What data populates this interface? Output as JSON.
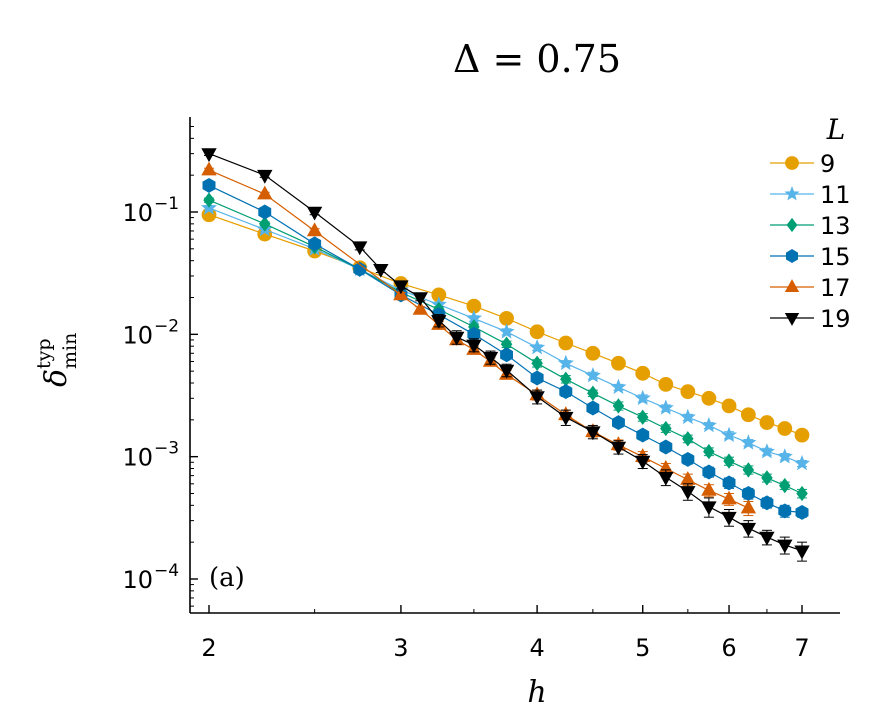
{
  "chart_data": {
    "type": "line",
    "title": "Δ = 0.75",
    "panel_label": "(a)",
    "xlabel": "h",
    "ylabel": "δ",
    "ylabel_sup": "typ",
    "ylabel_sub": "min",
    "xscale": "log",
    "yscale": "log",
    "xlim": [
      1.95,
      7.3
    ],
    "ylim": [
      5e-05,
      0.6
    ],
    "xticks": [
      2,
      3,
      4,
      5,
      6,
      7
    ],
    "xtick_labels": [
      "2",
      "3",
      "4",
      "5",
      "6",
      "7"
    ],
    "yticks": [
      0.0001,
      0.001,
      0.01,
      0.1
    ],
    "ytick_labels": [
      {
        "base": "10",
        "exp": "−4"
      },
      {
        "base": "10",
        "exp": "−3"
      },
      {
        "base": "10",
        "exp": "−2"
      },
      {
        "base": "10",
        "exp": "−1"
      }
    ],
    "legend_title": "L",
    "legend_position": "top-right",
    "error_bars": true,
    "series": [
      {
        "name": "9",
        "color": "#E69F00",
        "marker": "circle",
        "x": [
          2.0,
          2.25,
          2.5,
          2.75,
          3.0,
          3.25,
          3.5,
          3.75,
          4.0,
          4.25,
          4.5,
          4.75,
          5.0,
          5.25,
          5.5,
          5.75,
          6.0,
          6.25,
          6.5,
          6.75,
          7.0
        ],
        "y": [
          0.095,
          0.066,
          0.048,
          0.035,
          0.026,
          0.021,
          0.017,
          0.0135,
          0.0105,
          0.0085,
          0.007,
          0.0058,
          0.0048,
          0.0039,
          0.0034,
          0.003,
          0.0026,
          0.0022,
          0.0019,
          0.0017,
          0.0015
        ],
        "err": [
          0.004,
          0.003,
          0.002,
          0.0015,
          0.001,
          0.0008,
          0.0007,
          0.0006,
          0.0005,
          0.0004,
          0.0003,
          0.0003,
          0.0002,
          0.0002,
          0.0002,
          0.00015,
          0.00012,
          0.0001,
          0.0001,
          0.0001,
          0.0001
        ]
      },
      {
        "name": "11",
        "color": "#56B4E9",
        "marker": "star",
        "x": [
          2.0,
          2.25,
          2.5,
          2.75,
          3.0,
          3.25,
          3.5,
          3.75,
          4.0,
          4.25,
          4.5,
          4.75,
          5.0,
          5.25,
          5.5,
          5.75,
          6.0,
          6.25,
          6.5,
          6.75,
          7.0
        ],
        "y": [
          0.108,
          0.072,
          0.05,
          0.034,
          0.023,
          0.0175,
          0.0135,
          0.0105,
          0.0078,
          0.0058,
          0.0046,
          0.0037,
          0.003,
          0.0025,
          0.0021,
          0.0018,
          0.0015,
          0.0013,
          0.0011,
          0.001,
          0.00088
        ],
        "err": [
          0.004,
          0.003,
          0.002,
          0.0015,
          0.001,
          0.0008,
          0.0007,
          0.0006,
          0.0004,
          0.0003,
          0.0003,
          0.0002,
          0.0002,
          0.00015,
          0.00012,
          0.0001,
          0.0001,
          8e-05,
          7e-05,
          6e-05,
          5e-05
        ]
      },
      {
        "name": "13",
        "color": "#009E73",
        "marker": "diamond",
        "x": [
          2.0,
          2.25,
          2.5,
          2.75,
          3.0,
          3.25,
          3.5,
          3.75,
          4.0,
          4.25,
          4.5,
          4.75,
          5.0,
          5.25,
          5.5,
          5.75,
          6.0,
          6.25,
          6.5,
          6.75,
          7.0
        ],
        "y": [
          0.125,
          0.08,
          0.052,
          0.034,
          0.022,
          0.016,
          0.0115,
          0.0083,
          0.0058,
          0.0043,
          0.0033,
          0.0026,
          0.0021,
          0.0017,
          0.0014,
          0.0011,
          0.00092,
          0.00078,
          0.00067,
          0.00058,
          0.0005
        ],
        "err": [
          0.005,
          0.003,
          0.002,
          0.0015,
          0.001,
          0.0008,
          0.0006,
          0.0005,
          0.0004,
          0.0003,
          0.0002,
          0.0002,
          0.00015,
          0.00012,
          0.0001,
          8e-05,
          7e-05,
          6e-05,
          5e-05,
          4e-05,
          4e-05
        ]
      },
      {
        "name": "15",
        "color": "#0072B2",
        "marker": "hexagon",
        "x": [
          2.0,
          2.25,
          2.5,
          2.75,
          3.0,
          3.25,
          3.5,
          3.75,
          4.0,
          4.25,
          4.5,
          4.75,
          5.0,
          5.25,
          5.5,
          5.75,
          6.0,
          6.25,
          6.5,
          6.75,
          7.0
        ],
        "y": [
          0.165,
          0.1,
          0.055,
          0.034,
          0.021,
          0.0145,
          0.01,
          0.0068,
          0.0044,
          0.0034,
          0.0025,
          0.0019,
          0.0015,
          0.0012,
          0.00095,
          0.00075,
          0.00061,
          0.0005,
          0.00042,
          0.00036,
          0.00035
        ],
        "err": [
          0.006,
          0.004,
          0.002,
          0.0015,
          0.001,
          0.0008,
          0.0006,
          0.0005,
          0.0003,
          0.0003,
          0.0002,
          0.00015,
          0.00012,
          0.0001,
          8e-05,
          7e-05,
          6e-05,
          5e-05,
          4e-05,
          4e-05,
          3e-05
        ]
      },
      {
        "name": "17",
        "color": "#D55E00",
        "marker": "triangle-up",
        "x": [
          2.0,
          2.25,
          2.5,
          3.0,
          3.125,
          3.25,
          3.375,
          3.5,
          3.625,
          3.75,
          4.0,
          4.25,
          4.5,
          4.75,
          5.0,
          5.25,
          5.5,
          5.75,
          6.0,
          6.25
        ],
        "y": [
          0.22,
          0.14,
          0.07,
          0.021,
          0.016,
          0.012,
          0.009,
          0.0075,
          0.006,
          0.0047,
          0.0032,
          0.0022,
          0.0016,
          0.00125,
          0.001,
          0.0008,
          0.00065,
          0.00053,
          0.00045,
          0.00038
        ],
        "err": [
          0.008,
          0.005,
          0.003,
          0.001,
          0.0008,
          0.0007,
          0.0006,
          0.0005,
          0.0004,
          0.0004,
          0.0003,
          0.0002,
          0.00015,
          0.00012,
          0.0001,
          8e-05,
          7e-05,
          6e-05,
          5e-05,
          5e-05
        ]
      },
      {
        "name": "19",
        "color": "#000000",
        "marker": "triangle-down",
        "x": [
          2.0,
          2.25,
          2.5,
          2.75,
          2.875,
          3.0,
          3.125,
          3.25,
          3.375,
          3.5,
          3.625,
          3.75,
          4.0,
          4.25,
          4.5,
          4.75,
          5.0,
          5.25,
          5.5,
          5.75,
          6.0,
          6.25,
          6.5,
          6.75,
          7.0
        ],
        "y": [
          0.3,
          0.2,
          0.1,
          0.052,
          0.034,
          0.025,
          0.02,
          0.013,
          0.0095,
          0.0082,
          0.0065,
          0.0051,
          0.0031,
          0.0021,
          0.0016,
          0.0012,
          0.00092,
          0.00068,
          0.00052,
          0.00039,
          0.00032,
          0.00026,
          0.00022,
          0.00019,
          0.00017
        ],
        "err": [
          0.01,
          0.008,
          0.005,
          0.003,
          0.002,
          0.0015,
          0.0012,
          0.0015,
          0.0012,
          0.001,
          0.0008,
          0.0006,
          0.0004,
          0.0003,
          0.0002,
          0.00015,
          0.00012,
          0.0001,
          8e-05,
          7e-05,
          5e-05,
          4e-05,
          3e-05,
          3e-05,
          3e-05
        ]
      }
    ]
  }
}
